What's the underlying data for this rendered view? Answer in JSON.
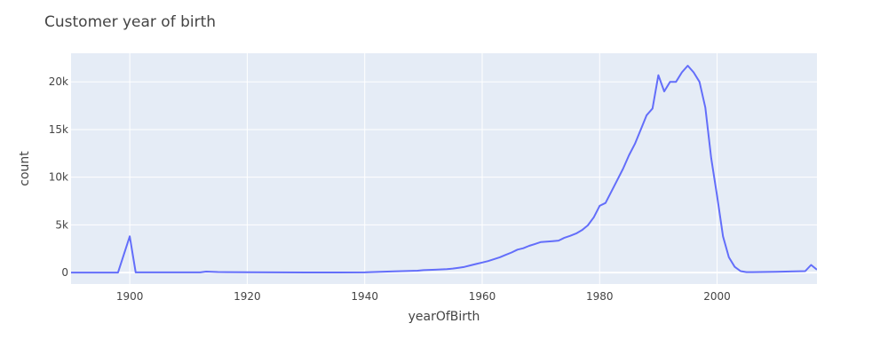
{
  "chart_data": {
    "type": "line",
    "title": "Customer year of birth",
    "xlabel": "yearOfBirth",
    "ylabel": "count",
    "xlim": [
      1890,
      2017
    ],
    "ylim": [
      -1200,
      23000
    ],
    "x_ticks": [
      1900,
      1920,
      1940,
      1960,
      1980,
      2000
    ],
    "y_ticks": [
      0,
      5000,
      10000,
      15000,
      20000
    ],
    "y_tick_labels": [
      "0",
      "5k",
      "10k",
      "15k",
      "20k"
    ],
    "grid": true,
    "legend": "none",
    "colors": {
      "line": "#636efa",
      "plot_bg": "#e5ecf6",
      "grid": "#ffffff",
      "text": "#444444"
    },
    "series": [
      {
        "x": [
          1890,
          1898,
          1900,
          1901,
          1910,
          1912,
          1913,
          1915,
          1920,
          1930,
          1940,
          1941,
          1945,
          1949,
          1950,
          1952,
          1954,
          1955,
          1956,
          1957,
          1958,
          1959,
          1960,
          1961,
          1962,
          1963,
          1964,
          1965,
          1966,
          1967,
          1968,
          1969,
          1970,
          1971,
          1972,
          1973,
          1974,
          1975,
          1976,
          1977,
          1978,
          1979,
          1980,
          1981,
          1982,
          1983,
          1984,
          1985,
          1986,
          1987,
          1988,
          1989,
          1990,
          1991,
          1992,
          1993,
          1994,
          1995,
          1996,
          1997,
          1998,
          1999,
          2000,
          2001,
          2002,
          2003,
          2004,
          2005,
          2006,
          2010,
          2015,
          2016,
          2017
        ],
        "y": [
          0,
          0,
          3800,
          20,
          20,
          20,
          100,
          60,
          30,
          10,
          20,
          50,
          120,
          200,
          250,
          300,
          350,
          420,
          500,
          600,
          750,
          900,
          1050,
          1200,
          1400,
          1600,
          1850,
          2100,
          2400,
          2550,
          2800,
          3000,
          3200,
          3250,
          3300,
          3350,
          3650,
          3850,
          4100,
          4450,
          4950,
          5800,
          7000,
          7300,
          8500,
          9700,
          10900,
          12300,
          13500,
          15000,
          16500,
          17200,
          20700,
          19000,
          20000,
          20000,
          21000,
          21700,
          21000,
          20000,
          17300,
          12000,
          8000,
          3800,
          1600,
          600,
          150,
          50,
          50,
          80,
          150,
          800,
          300
        ]
      }
    ]
  }
}
